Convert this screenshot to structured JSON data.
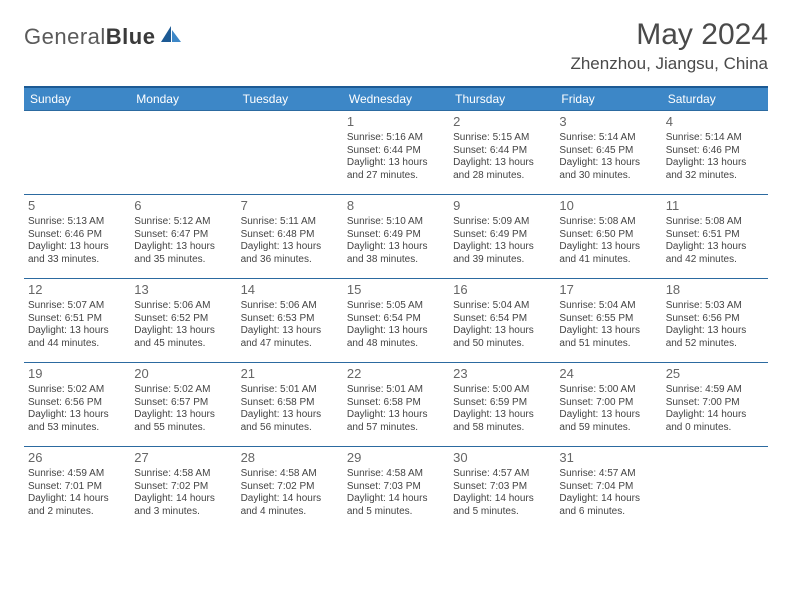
{
  "brand": {
    "part1": "General",
    "part2": "Blue"
  },
  "title": "May 2024",
  "location": "Zhenzhou, Jiangsu, China",
  "colors": {
    "header_bg": "#3d87c7",
    "header_border": "#1c5a94",
    "text": "#444444",
    "daynum": "#666666"
  },
  "weekdays": [
    "Sunday",
    "Monday",
    "Tuesday",
    "Wednesday",
    "Thursday",
    "Friday",
    "Saturday"
  ],
  "weeks": [
    [
      null,
      null,
      null,
      {
        "n": "1",
        "rise": "Sunrise: 5:16 AM",
        "set": "Sunset: 6:44 PM",
        "d1": "Daylight: 13 hours",
        "d2": "and 27 minutes."
      },
      {
        "n": "2",
        "rise": "Sunrise: 5:15 AM",
        "set": "Sunset: 6:44 PM",
        "d1": "Daylight: 13 hours",
        "d2": "and 28 minutes."
      },
      {
        "n": "3",
        "rise": "Sunrise: 5:14 AM",
        "set": "Sunset: 6:45 PM",
        "d1": "Daylight: 13 hours",
        "d2": "and 30 minutes."
      },
      {
        "n": "4",
        "rise": "Sunrise: 5:14 AM",
        "set": "Sunset: 6:46 PM",
        "d1": "Daylight: 13 hours",
        "d2": "and 32 minutes."
      }
    ],
    [
      {
        "n": "5",
        "rise": "Sunrise: 5:13 AM",
        "set": "Sunset: 6:46 PM",
        "d1": "Daylight: 13 hours",
        "d2": "and 33 minutes."
      },
      {
        "n": "6",
        "rise": "Sunrise: 5:12 AM",
        "set": "Sunset: 6:47 PM",
        "d1": "Daylight: 13 hours",
        "d2": "and 35 minutes."
      },
      {
        "n": "7",
        "rise": "Sunrise: 5:11 AM",
        "set": "Sunset: 6:48 PM",
        "d1": "Daylight: 13 hours",
        "d2": "and 36 minutes."
      },
      {
        "n": "8",
        "rise": "Sunrise: 5:10 AM",
        "set": "Sunset: 6:49 PM",
        "d1": "Daylight: 13 hours",
        "d2": "and 38 minutes."
      },
      {
        "n": "9",
        "rise": "Sunrise: 5:09 AM",
        "set": "Sunset: 6:49 PM",
        "d1": "Daylight: 13 hours",
        "d2": "and 39 minutes."
      },
      {
        "n": "10",
        "rise": "Sunrise: 5:08 AM",
        "set": "Sunset: 6:50 PM",
        "d1": "Daylight: 13 hours",
        "d2": "and 41 minutes."
      },
      {
        "n": "11",
        "rise": "Sunrise: 5:08 AM",
        "set": "Sunset: 6:51 PM",
        "d1": "Daylight: 13 hours",
        "d2": "and 42 minutes."
      }
    ],
    [
      {
        "n": "12",
        "rise": "Sunrise: 5:07 AM",
        "set": "Sunset: 6:51 PM",
        "d1": "Daylight: 13 hours",
        "d2": "and 44 minutes."
      },
      {
        "n": "13",
        "rise": "Sunrise: 5:06 AM",
        "set": "Sunset: 6:52 PM",
        "d1": "Daylight: 13 hours",
        "d2": "and 45 minutes."
      },
      {
        "n": "14",
        "rise": "Sunrise: 5:06 AM",
        "set": "Sunset: 6:53 PM",
        "d1": "Daylight: 13 hours",
        "d2": "and 47 minutes."
      },
      {
        "n": "15",
        "rise": "Sunrise: 5:05 AM",
        "set": "Sunset: 6:54 PM",
        "d1": "Daylight: 13 hours",
        "d2": "and 48 minutes."
      },
      {
        "n": "16",
        "rise": "Sunrise: 5:04 AM",
        "set": "Sunset: 6:54 PM",
        "d1": "Daylight: 13 hours",
        "d2": "and 50 minutes."
      },
      {
        "n": "17",
        "rise": "Sunrise: 5:04 AM",
        "set": "Sunset: 6:55 PM",
        "d1": "Daylight: 13 hours",
        "d2": "and 51 minutes."
      },
      {
        "n": "18",
        "rise": "Sunrise: 5:03 AM",
        "set": "Sunset: 6:56 PM",
        "d1": "Daylight: 13 hours",
        "d2": "and 52 minutes."
      }
    ],
    [
      {
        "n": "19",
        "rise": "Sunrise: 5:02 AM",
        "set": "Sunset: 6:56 PM",
        "d1": "Daylight: 13 hours",
        "d2": "and 53 minutes."
      },
      {
        "n": "20",
        "rise": "Sunrise: 5:02 AM",
        "set": "Sunset: 6:57 PM",
        "d1": "Daylight: 13 hours",
        "d2": "and 55 minutes."
      },
      {
        "n": "21",
        "rise": "Sunrise: 5:01 AM",
        "set": "Sunset: 6:58 PM",
        "d1": "Daylight: 13 hours",
        "d2": "and 56 minutes."
      },
      {
        "n": "22",
        "rise": "Sunrise: 5:01 AM",
        "set": "Sunset: 6:58 PM",
        "d1": "Daylight: 13 hours",
        "d2": "and 57 minutes."
      },
      {
        "n": "23",
        "rise": "Sunrise: 5:00 AM",
        "set": "Sunset: 6:59 PM",
        "d1": "Daylight: 13 hours",
        "d2": "and 58 minutes."
      },
      {
        "n": "24",
        "rise": "Sunrise: 5:00 AM",
        "set": "Sunset: 7:00 PM",
        "d1": "Daylight: 13 hours",
        "d2": "and 59 minutes."
      },
      {
        "n": "25",
        "rise": "Sunrise: 4:59 AM",
        "set": "Sunset: 7:00 PM",
        "d1": "Daylight: 14 hours",
        "d2": "and 0 minutes."
      }
    ],
    [
      {
        "n": "26",
        "rise": "Sunrise: 4:59 AM",
        "set": "Sunset: 7:01 PM",
        "d1": "Daylight: 14 hours",
        "d2": "and 2 minutes."
      },
      {
        "n": "27",
        "rise": "Sunrise: 4:58 AM",
        "set": "Sunset: 7:02 PM",
        "d1": "Daylight: 14 hours",
        "d2": "and 3 minutes."
      },
      {
        "n": "28",
        "rise": "Sunrise: 4:58 AM",
        "set": "Sunset: 7:02 PM",
        "d1": "Daylight: 14 hours",
        "d2": "and 4 minutes."
      },
      {
        "n": "29",
        "rise": "Sunrise: 4:58 AM",
        "set": "Sunset: 7:03 PM",
        "d1": "Daylight: 14 hours",
        "d2": "and 5 minutes."
      },
      {
        "n": "30",
        "rise": "Sunrise: 4:57 AM",
        "set": "Sunset: 7:03 PM",
        "d1": "Daylight: 14 hours",
        "d2": "and 5 minutes."
      },
      {
        "n": "31",
        "rise": "Sunrise: 4:57 AM",
        "set": "Sunset: 7:04 PM",
        "d1": "Daylight: 14 hours",
        "d2": "and 6 minutes."
      },
      null
    ]
  ]
}
